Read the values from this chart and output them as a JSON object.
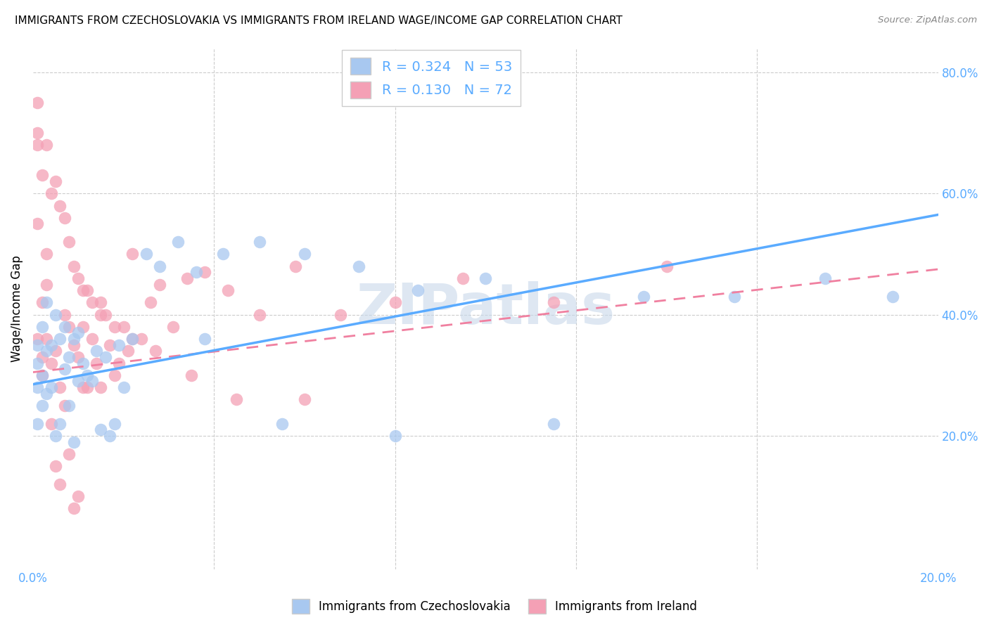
{
  "title": "IMMIGRANTS FROM CZECHOSLOVAKIA VS IMMIGRANTS FROM IRELAND WAGE/INCOME GAP CORRELATION CHART",
  "source": "Source: ZipAtlas.com",
  "ylabel": "Wage/Income Gap",
  "xlim": [
    0.0,
    0.2
  ],
  "ylim": [
    -0.02,
    0.84
  ],
  "x_tick_positions": [
    0.0,
    0.04,
    0.08,
    0.12,
    0.16,
    0.2
  ],
  "x_tick_labels": [
    "0.0%",
    "",
    "",
    "",
    "",
    "20.0%"
  ],
  "y_tick_vals_right": [
    0.2,
    0.4,
    0.6,
    0.8
  ],
  "y_tick_labels_right": [
    "20.0%",
    "40.0%",
    "60.0%",
    "80.0%"
  ],
  "R_czech": 0.324,
  "N_czech": 53,
  "R_ireland": 0.13,
  "N_ireland": 72,
  "color_czech": "#a8c8f0",
  "color_ireland": "#f4a0b5",
  "color_czech_line": "#5aabff",
  "color_ireland_line": "#f080a0",
  "color_text_blue": "#5aabff",
  "color_watermark": "#c8d8ea",
  "legend_label_czech": "Immigrants from Czechoslovakia",
  "legend_label_ireland": "Immigrants from Ireland",
  "czech_x": [
    0.001,
    0.001,
    0.001,
    0.001,
    0.002,
    0.002,
    0.002,
    0.003,
    0.003,
    0.003,
    0.004,
    0.004,
    0.005,
    0.005,
    0.006,
    0.006,
    0.007,
    0.007,
    0.008,
    0.008,
    0.009,
    0.009,
    0.01,
    0.01,
    0.011,
    0.012,
    0.013,
    0.014,
    0.015,
    0.016,
    0.017,
    0.018,
    0.019,
    0.02,
    0.022,
    0.025,
    0.028,
    0.032,
    0.036,
    0.042,
    0.05,
    0.06,
    0.072,
    0.085,
    0.1,
    0.115,
    0.135,
    0.155,
    0.175,
    0.19,
    0.038,
    0.055,
    0.08
  ],
  "czech_y": [
    0.35,
    0.32,
    0.28,
    0.22,
    0.38,
    0.3,
    0.25,
    0.42,
    0.34,
    0.27,
    0.35,
    0.28,
    0.4,
    0.2,
    0.36,
    0.22,
    0.38,
    0.31,
    0.33,
    0.25,
    0.36,
    0.19,
    0.37,
    0.29,
    0.32,
    0.3,
    0.29,
    0.34,
    0.21,
    0.33,
    0.2,
    0.22,
    0.35,
    0.28,
    0.36,
    0.5,
    0.48,
    0.52,
    0.47,
    0.5,
    0.52,
    0.5,
    0.48,
    0.44,
    0.46,
    0.22,
    0.43,
    0.43,
    0.46,
    0.43,
    0.36,
    0.22,
    0.2
  ],
  "ireland_x": [
    0.001,
    0.001,
    0.001,
    0.001,
    0.002,
    0.002,
    0.002,
    0.003,
    0.003,
    0.003,
    0.004,
    0.004,
    0.005,
    0.005,
    0.006,
    0.006,
    0.007,
    0.007,
    0.008,
    0.008,
    0.009,
    0.009,
    0.01,
    0.01,
    0.011,
    0.011,
    0.012,
    0.012,
    0.013,
    0.014,
    0.015,
    0.015,
    0.016,
    0.017,
    0.018,
    0.019,
    0.02,
    0.021,
    0.022,
    0.024,
    0.026,
    0.028,
    0.031,
    0.034,
    0.038,
    0.043,
    0.05,
    0.058,
    0.068,
    0.08,
    0.095,
    0.115,
    0.14,
    0.001,
    0.002,
    0.003,
    0.004,
    0.005,
    0.006,
    0.007,
    0.008,
    0.009,
    0.01,
    0.011,
    0.013,
    0.015,
    0.018,
    0.022,
    0.027,
    0.035,
    0.045,
    0.06
  ],
  "ireland_y": [
    0.36,
    0.55,
    0.68,
    0.75,
    0.33,
    0.42,
    0.3,
    0.36,
    0.5,
    0.45,
    0.32,
    0.22,
    0.34,
    0.15,
    0.28,
    0.12,
    0.4,
    0.25,
    0.38,
    0.17,
    0.35,
    0.08,
    0.33,
    0.1,
    0.38,
    0.28,
    0.44,
    0.28,
    0.36,
    0.32,
    0.42,
    0.28,
    0.4,
    0.35,
    0.3,
    0.32,
    0.38,
    0.34,
    0.5,
    0.36,
    0.42,
    0.45,
    0.38,
    0.46,
    0.47,
    0.44,
    0.4,
    0.48,
    0.4,
    0.42,
    0.46,
    0.42,
    0.48,
    0.7,
    0.63,
    0.68,
    0.6,
    0.62,
    0.58,
    0.56,
    0.52,
    0.48,
    0.46,
    0.44,
    0.42,
    0.4,
    0.38,
    0.36,
    0.34,
    0.3,
    0.26,
    0.26
  ],
  "czech_line_x": [
    0.0,
    0.2
  ],
  "czech_line_y": [
    0.285,
    0.565
  ],
  "ireland_line_x": [
    0.0,
    0.2
  ],
  "ireland_line_y": [
    0.305,
    0.475
  ]
}
